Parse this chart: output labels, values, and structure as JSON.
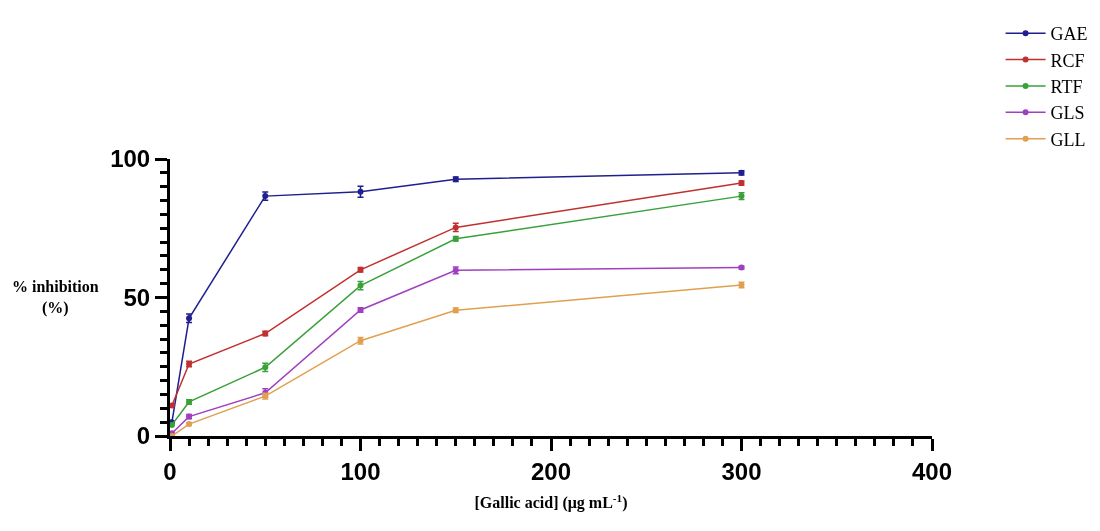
{
  "chart_data": {
    "type": "line",
    "xlabel": "[Gallic acid] (μg mL$^{-1}$)",
    "ylabel": "% inhibition\n(%)",
    "x": [
      1,
      10,
      50,
      100,
      150,
      300
    ],
    "series": [
      {
        "name": "GAE",
        "color": "#1f1f8f",
        "values": [
          5,
          42.5,
          86.6,
          88.2,
          92.7,
          95
        ],
        "errors": [
          null,
          1.5,
          1.5,
          2,
          0.8,
          0.8
        ]
      },
      {
        "name": "RCF",
        "color": "#c0302f",
        "values": [
          11,
          26,
          37,
          60,
          75.3,
          91.3
        ],
        "errors": [
          null,
          1,
          0.8,
          0.8,
          1.5,
          0.8
        ]
      },
      {
        "name": "RTF",
        "color": "#3aa03a",
        "values": [
          4,
          12.3,
          24.8,
          54.3,
          71.2,
          86.6
        ],
        "errors": [
          null,
          0.8,
          1.5,
          1.5,
          0.8,
          1.2
        ]
      },
      {
        "name": "GLS",
        "color": "#a040c0",
        "values": [
          1,
          7,
          15.6,
          45.5,
          59.8,
          60.8
        ],
        "errors": [
          null,
          0.8,
          1.5,
          0.8,
          1.2,
          0.5
        ]
      },
      {
        "name": "GLL",
        "color": "#e0a050",
        "values": [
          0,
          4.3,
          14.4,
          34.4,
          45.4,
          54.5
        ],
        "errors": [
          null,
          0.5,
          1,
          1.2,
          0.8,
          1
        ]
      }
    ],
    "xlim": [
      0,
      400
    ],
    "xticks": [
      0,
      100,
      200,
      300,
      400
    ],
    "ylim": [
      0,
      100
    ],
    "yticks": [
      0,
      50,
      100
    ],
    "legend": "top right",
    "marker": "circle",
    "line_style": "solid"
  }
}
